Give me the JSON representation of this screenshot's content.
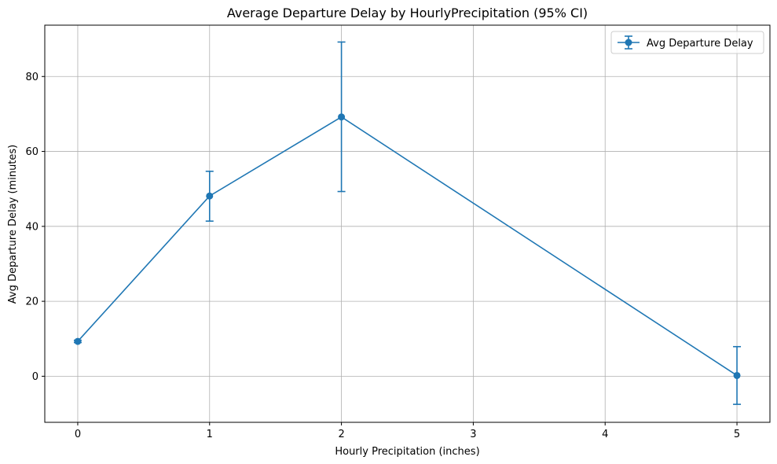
{
  "chart_data": {
    "type": "line",
    "title": "Average Departure Delay by HourlyPrecipitation (95% CI)",
    "xlabel": "Hourly Precipitation (inches)",
    "ylabel": "Avg Departure Delay (minutes)",
    "xlim": [
      -0.25,
      5.25
    ],
    "ylim": [
      -12.3,
      93.7
    ],
    "xticks": [
      0,
      1,
      2,
      3,
      4,
      5
    ],
    "yticks": [
      0,
      20,
      40,
      60,
      80
    ],
    "grid": true,
    "legend_position": "top-right",
    "series": [
      {
        "name": "Avg Departure Delay",
        "color": "#1f77b4",
        "marker": "circle",
        "x": [
          0,
          1,
          2,
          5
        ],
        "y": [
          9.3,
          48.1,
          69.2,
          0.2
        ],
        "ci_low": [
          9.0,
          41.4,
          49.3,
          -7.5
        ],
        "ci_high": [
          9.6,
          54.7,
          89.2,
          7.9
        ]
      }
    ]
  }
}
